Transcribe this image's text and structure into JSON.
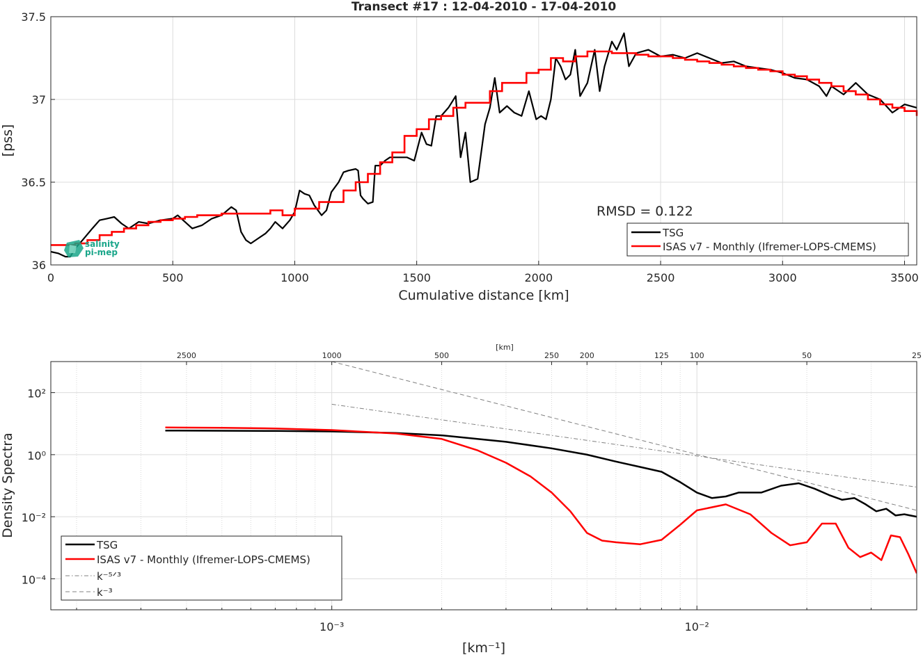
{
  "colors": {
    "tsg": "#000000",
    "isas": "#ff0000",
    "ref": "#808080",
    "grid": "#dcdcdc",
    "axis": "#262626",
    "logo": "#1aa68a"
  },
  "chart_data": [
    {
      "type": "line",
      "title": "Transect #17 : 12-04-2010 - 17-04-2010",
      "xlabel": "Cumulative distance [km]",
      "ylabel": "[pss]",
      "xlim": [
        0,
        3550
      ],
      "ylim": [
        36,
        37.5
      ],
      "xticks": [
        0,
        500,
        1000,
        1500,
        2000,
        2500,
        3000,
        3500
      ],
      "yticks": [
        36,
        36.5,
        37,
        37.5
      ],
      "ytick_labels": [
        "36",
        "36.5",
        "37",
        "37.5"
      ],
      "annotation": "RMSD = 0.122",
      "logo_text": [
        "salinity",
        "pi-mep"
      ],
      "legend_position": "lower-right",
      "grid": true,
      "series": [
        {
          "name": "TSG",
          "x": [
            0,
            30,
            60,
            80,
            100,
            130,
            170,
            200,
            230,
            260,
            290,
            320,
            360,
            400,
            450,
            500,
            520,
            550,
            580,
            620,
            660,
            700,
            740,
            760,
            780,
            800,
            820,
            850,
            880,
            900,
            920,
            950,
            980,
            1000,
            1020,
            1040,
            1060,
            1080,
            1110,
            1130,
            1150,
            1180,
            1200,
            1220,
            1250,
            1260,
            1270,
            1280,
            1300,
            1320,
            1330,
            1350,
            1370,
            1390,
            1420,
            1460,
            1490,
            1520,
            1540,
            1560,
            1580,
            1600,
            1630,
            1660,
            1680,
            1700,
            1720,
            1750,
            1780,
            1800,
            1820,
            1840,
            1870,
            1900,
            1930,
            1960,
            1990,
            2010,
            2030,
            2050,
            2070,
            2090,
            2110,
            2130,
            2150,
            2170,
            2200,
            2230,
            2250,
            2270,
            2300,
            2320,
            2350,
            2370,
            2400,
            2450,
            2500,
            2550,
            2600,
            2650,
            2700,
            2750,
            2800,
            2850,
            2900,
            2950,
            3000,
            3050,
            3100,
            3150,
            3180,
            3200,
            3250,
            3300,
            3350,
            3400,
            3450,
            3500,
            3550
          ],
          "y": [
            36.08,
            36.07,
            36.05,
            36.05,
            36.1,
            36.15,
            36.22,
            36.27,
            36.28,
            36.29,
            36.25,
            36.22,
            36.26,
            36.25,
            36.27,
            36.28,
            36.3,
            36.26,
            36.22,
            36.24,
            36.28,
            36.3,
            36.35,
            36.33,
            36.2,
            36.15,
            36.13,
            36.16,
            36.19,
            36.22,
            36.26,
            36.22,
            36.27,
            36.32,
            36.45,
            36.43,
            36.42,
            36.36,
            36.3,
            36.33,
            36.44,
            36.5,
            36.56,
            36.57,
            36.58,
            36.57,
            36.42,
            36.4,
            36.37,
            36.38,
            36.6,
            36.6,
            36.63,
            36.65,
            36.65,
            36.65,
            36.63,
            36.8,
            36.73,
            36.72,
            36.9,
            36.9,
            36.95,
            37.02,
            36.65,
            36.8,
            36.5,
            36.52,
            36.85,
            36.95,
            37.13,
            36.92,
            36.96,
            36.92,
            36.9,
            37.05,
            36.88,
            36.9,
            36.88,
            37.0,
            37.25,
            37.2,
            37.12,
            37.15,
            37.3,
            37.02,
            37.1,
            37.3,
            37.05,
            37.2,
            37.35,
            37.3,
            37.4,
            37.2,
            37.28,
            37.3,
            37.26,
            37.27,
            37.25,
            37.28,
            37.25,
            37.22,
            37.23,
            37.2,
            37.19,
            37.18,
            37.16,
            37.13,
            37.12,
            37.08,
            37.02,
            37.08,
            37.03,
            37.1,
            37.03,
            37.0,
            36.92,
            36.97,
            36.95
          ],
          "color": "#000000"
        },
        {
          "name": "ISAS v7 - Monthly (Ifremer-LOPS-CMEMS)",
          "x": [
            0,
            50,
            100,
            150,
            200,
            250,
            300,
            350,
            400,
            450,
            500,
            550,
            600,
            650,
            700,
            750,
            800,
            850,
            900,
            950,
            1000,
            1050,
            1100,
            1150,
            1200,
            1250,
            1300,
            1350,
            1400,
            1450,
            1500,
            1550,
            1600,
            1650,
            1700,
            1750,
            1800,
            1850,
            1900,
            1950,
            2000,
            2050,
            2100,
            2150,
            2200,
            2250,
            2300,
            2350,
            2400,
            2450,
            2500,
            2550,
            2600,
            2650,
            2700,
            2750,
            2800,
            2850,
            2900,
            2950,
            3000,
            3050,
            3100,
            3150,
            3200,
            3250,
            3300,
            3350,
            3400,
            3450,
            3500,
            3550
          ],
          "y": [
            36.12,
            36.12,
            36.13,
            36.15,
            36.18,
            36.2,
            36.22,
            36.24,
            36.26,
            36.27,
            36.28,
            36.29,
            36.3,
            36.3,
            36.31,
            36.31,
            36.31,
            36.31,
            36.33,
            36.3,
            36.34,
            36.34,
            36.38,
            36.38,
            36.45,
            36.5,
            36.55,
            36.62,
            36.68,
            36.78,
            36.82,
            36.88,
            36.9,
            36.95,
            36.98,
            36.98,
            37.05,
            37.1,
            37.1,
            37.16,
            37.18,
            37.25,
            37.23,
            37.26,
            37.29,
            37.29,
            37.28,
            37.28,
            37.27,
            37.26,
            37.26,
            37.25,
            37.24,
            37.23,
            37.22,
            37.21,
            37.2,
            37.19,
            37.18,
            37.17,
            37.15,
            37.14,
            37.12,
            37.1,
            37.08,
            37.05,
            37.03,
            37.0,
            36.97,
            36.95,
            36.93,
            36.9
          ],
          "color": "#ff0000"
        }
      ]
    },
    {
      "type": "line",
      "title": "",
      "xlabel": "[km⁻¹]",
      "ylabel": "Density Spectra",
      "xscale": "log",
      "yscale": "log",
      "xlim": [
        0.00017,
        0.04
      ],
      "ylim": [
        1e-05,
        1000
      ],
      "xticks": [
        0.001,
        0.01
      ],
      "xtick_labels": [
        "10⁻³",
        "10⁻²"
      ],
      "yticks": [
        0.0001,
        0.01,
        1,
        100
      ],
      "ytick_labels": [
        "10⁻⁴",
        "10⁻²",
        "10⁰",
        "10²"
      ],
      "top_axis_label": "[km]",
      "top_ticks": [
        2500,
        1000,
        500,
        250,
        200,
        125,
        100,
        50,
        25
      ],
      "top_tick_labels": [
        "2500",
        "1000",
        "500",
        "250",
        "200",
        "125",
        "100",
        "50",
        "25"
      ],
      "legend_position": "lower-left",
      "grid": true,
      "series": [
        {
          "name": "TSG",
          "x": [
            0.00035,
            0.0005,
            0.0007,
            0.001,
            0.0015,
            0.002,
            0.003,
            0.004,
            0.005,
            0.006,
            0.007,
            0.008,
            0.009,
            0.01,
            0.011,
            0.012,
            0.013,
            0.015,
            0.017,
            0.019,
            0.021,
            0.023,
            0.025,
            0.027,
            0.029,
            0.031,
            0.033,
            0.035,
            0.037,
            0.04
          ],
          "y": [
            6.0,
            5.9,
            5.8,
            5.6,
            5.0,
            4.2,
            2.6,
            1.6,
            1.0,
            0.6,
            0.4,
            0.28,
            0.13,
            0.06,
            0.04,
            0.045,
            0.06,
            0.06,
            0.1,
            0.12,
            0.08,
            0.05,
            0.035,
            0.04,
            0.025,
            0.015,
            0.018,
            0.011,
            0.012,
            0.01
          ],
          "color": "#000000"
        },
        {
          "name": "ISAS v7 - Monthly (Ifremer-LOPS-CMEMS)",
          "x": [
            0.00035,
            0.0005,
            0.0007,
            0.001,
            0.0015,
            0.002,
            0.0025,
            0.003,
            0.0035,
            0.004,
            0.0045,
            0.005,
            0.0055,
            0.006,
            0.007,
            0.008,
            0.009,
            0.01,
            0.012,
            0.014,
            0.016,
            0.018,
            0.02,
            0.022,
            0.024,
            0.026,
            0.028,
            0.03,
            0.032,
            0.034,
            0.036,
            0.038,
            0.04
          ],
          "y": [
            7.5,
            7.3,
            7.0,
            6.2,
            4.8,
            3.2,
            1.4,
            0.55,
            0.2,
            0.06,
            0.015,
            0.003,
            0.0017,
            0.0015,
            0.0013,
            0.0018,
            0.0055,
            0.016,
            0.025,
            0.012,
            0.003,
            0.0012,
            0.0015,
            0.006,
            0.006,
            0.001,
            0.0005,
            0.0007,
            0.0004,
            0.0025,
            0.0022,
            0.0006,
            0.00015
          ],
          "color": "#ff0000"
        },
        {
          "name": "k⁻⁵ᐟ³",
          "x": [
            0.001,
            0.04
          ],
          "y": [
            42,
            0.09
          ],
          "color": "#808080",
          "dash": "dashdot"
        },
        {
          "name": "k⁻³",
          "x": [
            0.001,
            0.04
          ],
          "y": [
            1000,
            0.016
          ],
          "color": "#808080",
          "dash": "dashed"
        }
      ]
    }
  ]
}
